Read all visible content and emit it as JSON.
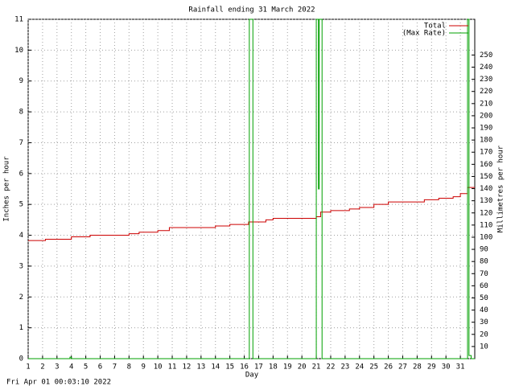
{
  "chart_data": {
    "type": "line",
    "title": "Rainfall ending 31 March 2022",
    "x_label": "Day",
    "y_label": "Inches per hour",
    "y2_label": "Millimetres per hour",
    "footer": "Fri Apr 01 00:03:10 2022",
    "legend": "top-right",
    "grid": true,
    "xlim": [
      1,
      32
    ],
    "xticks": [
      1,
      2,
      3,
      4,
      5,
      6,
      7,
      8,
      9,
      10,
      11,
      12,
      13,
      14,
      15,
      16,
      17,
      18,
      19,
      20,
      21,
      22,
      23,
      24,
      25,
      26,
      27,
      28,
      29,
      30,
      31
    ],
    "ylim": [
      0,
      11
    ],
    "yticks": [
      0,
      1,
      2,
      3,
      4,
      5,
      6,
      7,
      8,
      9,
      10,
      11
    ],
    "y2lim": [
      0,
      279.4
    ],
    "y2ticks": [
      10,
      20,
      30,
      40,
      50,
      60,
      70,
      80,
      90,
      100,
      110,
      120,
      130,
      140,
      150,
      160,
      170,
      180,
      190,
      200,
      210,
      220,
      230,
      240,
      250
    ],
    "series": [
      {
        "name": "Total",
        "color": "#cc0000",
        "x": [
          1,
          2.2,
          2.2,
          4.0,
          4.0,
          5.3,
          5.3,
          8.0,
          8.0,
          8.7,
          8.7,
          10,
          10,
          10.8,
          10.8,
          14,
          14,
          15,
          15,
          16.3,
          16.3,
          17.5,
          17.5,
          18,
          18,
          21,
          21,
          21.3,
          21.3,
          22,
          22,
          23.3,
          23.3,
          24,
          24,
          25,
          25,
          26,
          26,
          28.5,
          28.5,
          29.5,
          29.5,
          30.5,
          30.5,
          31,
          31,
          31.5,
          31.5,
          31.7,
          32
        ],
        "values": [
          3.83,
          3.83,
          3.87,
          3.87,
          3.95,
          3.95,
          4.0,
          4.0,
          4.05,
          4.05,
          4.1,
          4.1,
          4.15,
          4.15,
          4.25,
          4.25,
          4.3,
          4.3,
          4.35,
          4.35,
          4.43,
          4.43,
          4.5,
          4.5,
          4.55,
          4.55,
          4.6,
          4.6,
          4.75,
          4.75,
          4.8,
          4.8,
          4.85,
          4.85,
          4.9,
          4.9,
          5.0,
          5.0,
          5.08,
          5.08,
          5.15,
          5.15,
          5.2,
          5.2,
          5.25,
          5.25,
          5.35,
          5.35,
          5.55,
          5.55,
          5.55
        ]
      },
      {
        "name": "(Max Rate)",
        "color": "#00a000",
        "x": [
          1,
          3.9,
          3.9,
          4.0,
          4.0,
          16.35,
          16.35,
          16.6,
          16.6,
          21.0,
          21.0,
          21.15,
          21.15,
          21.2,
          21.2,
          21.4,
          21.4,
          31.5,
          31.5,
          31.6,
          31.6,
          31.75,
          31.75,
          32
        ],
        "values": [
          0,
          0,
          0.05,
          0.05,
          0,
          0,
          11,
          11,
          0,
          0,
          11,
          11,
          5.5,
          5.5,
          11,
          11,
          0,
          0,
          11,
          11,
          0.1,
          0.1,
          0,
          0
        ]
      }
    ]
  }
}
